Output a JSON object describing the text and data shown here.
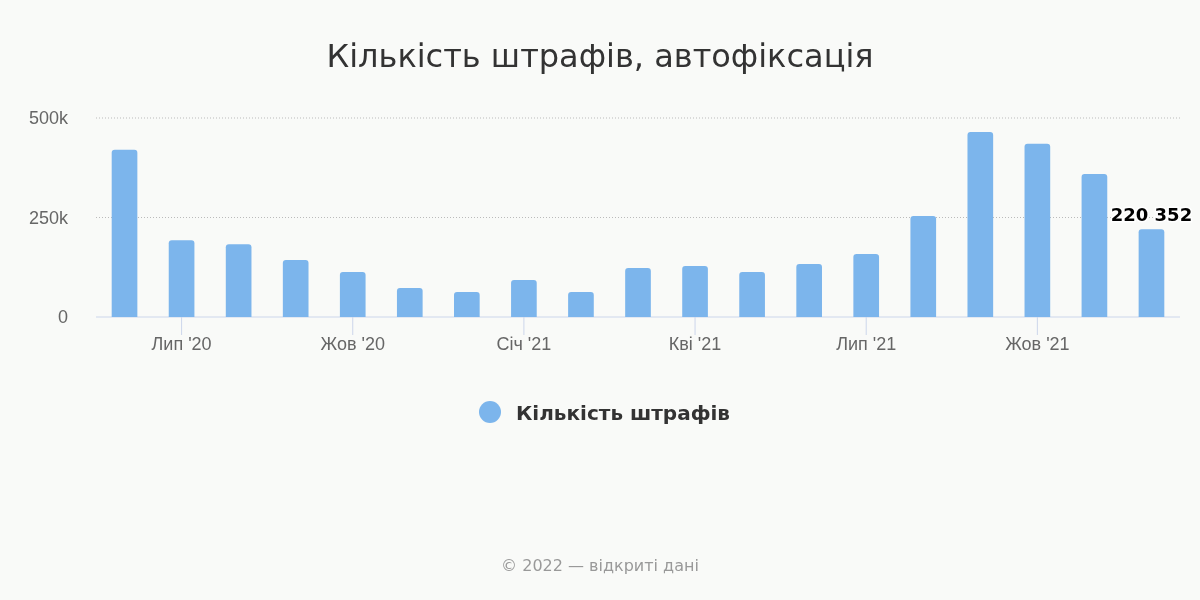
{
  "chart_data": {
    "type": "bar",
    "title": "Кількість штрафів, автофіксація",
    "categories": [
      null,
      "Лип '20",
      null,
      null,
      "Жов '20",
      null,
      null,
      "Січ '21",
      null,
      null,
      "Кві '21",
      null,
      null,
      "Лип '21",
      null,
      null,
      "Жов '21",
      null,
      null
    ],
    "series": [
      {
        "name": "Кількість штрафів",
        "color": "#7cb5ec",
        "values": [
          420000,
          193000,
          183000,
          143000,
          113000,
          73000,
          63000,
          93000,
          63000,
          123000,
          128000,
          113000,
          133000,
          158000,
          254000,
          465000,
          435000,
          359000,
          220352
        ],
        "value_labels": [
          null,
          null,
          null,
          null,
          null,
          null,
          null,
          null,
          null,
          null,
          null,
          null,
          null,
          null,
          null,
          null,
          null,
          null,
          "220 352"
        ]
      }
    ],
    "ylim": [
      0,
      500000
    ],
    "yticks": [
      {
        "value": 0,
        "label": "0"
      },
      {
        "value": 250000,
        "label": "250k"
      },
      {
        "value": 500000,
        "label": "500k"
      }
    ],
    "grid": "y",
    "legend": "bottom",
    "annotations": [
      "© 2022 — відкриті дані"
    ]
  }
}
